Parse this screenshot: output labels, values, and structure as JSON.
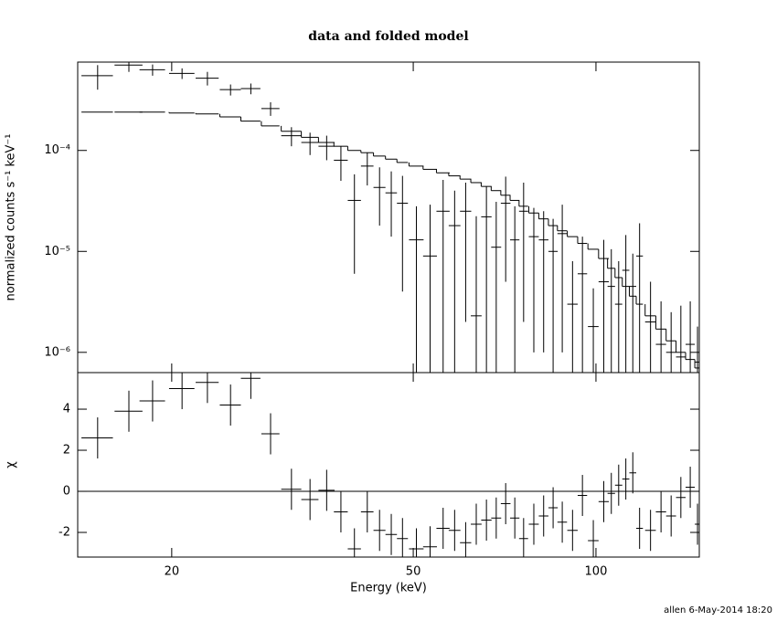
{
  "chart_data": [
    {
      "type": "errorbar",
      "title": "data and folded model",
      "ylabel": "normalized counts s⁻¹ keV⁻¹",
      "log_x": true,
      "log_y": true,
      "xlim": [
        14,
        148
      ],
      "ylim": [
        6.3e-07,
        0.00075
      ],
      "yticks": [
        {
          "value": 0.0001,
          "label": "10⁻⁴"
        },
        {
          "value": 1e-05,
          "label": "10⁻⁵"
        },
        {
          "value": 1e-06,
          "label": "10⁻⁶"
        }
      ],
      "color": "#000000",
      "model_color": "#000000",
      "x": [
        15.1,
        17,
        18.6,
        20.8,
        22.9,
        25,
        27,
        29.1,
        31.5,
        33.8,
        36,
        38,
        40,
        42,
        44,
        46,
        48,
        50.6,
        53.3,
        56,
        58.5,
        61,
        63.5,
        66,
        68.5,
        71,
        73.5,
        76,
        79,
        82,
        85,
        88,
        91.5,
        95,
        99,
        103,
        106,
        109,
        112,
        115,
        118,
        123,
        128,
        133,
        138,
        143,
        147
      ],
      "xerr": [
        0.9,
        0.9,
        0.9,
        1.0,
        1.0,
        1.0,
        1.0,
        1.0,
        1.2,
        1.1,
        1.1,
        1.0,
        1.0,
        1.0,
        1.0,
        1.0,
        1.0,
        1.4,
        1.4,
        1.4,
        1.3,
        1.3,
        1.3,
        1.3,
        1.3,
        1.3,
        1.3,
        1.3,
        1.5,
        1.5,
        1.5,
        1.6,
        1.8,
        1.7,
        2,
        2,
        1.5,
        1.5,
        1.5,
        1.5,
        1.5,
        2.5,
        2.5,
        2.5,
        2.5,
        2.5,
        1.5
      ],
      "values": [
        0.00055,
        0.0007,
        0.00063,
        0.00058,
        0.00052,
        0.0004,
        0.00041,
        0.00026,
        0.00014,
        0.00012,
        0.00011,
        8e-05,
        3.2e-05,
        7e-05,
        4.3e-05,
        3.8e-05,
        3e-05,
        1.3e-05,
        9e-06,
        2.5e-05,
        1.8e-05,
        2.5e-05,
        2.3e-06,
        2.2e-05,
        1.1e-05,
        3e-05,
        1.3e-05,
        2.5e-05,
        1.4e-05,
        1.3e-05,
        1e-05,
        1.5e-05,
        3e-06,
        6e-06,
        1.8e-06,
        5e-06,
        4.5e-06,
        3e-06,
        6.5e-06,
        4.5e-06,
        9e-06,
        2e-06,
        1.2e-06,
        1e-06,
        9e-07,
        1.2e-06,
        8e-07
      ],
      "yerr": [
        0.00015,
        0.0001,
        8e-05,
        7e-05,
        8e-05,
        5e-05,
        5e-05,
        4e-05,
        3e-05,
        3e-05,
        3e-05,
        3e-05,
        2.6e-05,
        2.5e-05,
        2.5e-05,
        2.4e-05,
        2.6e-05,
        1.5e-05,
        2e-05,
        2.6e-05,
        2.2e-05,
        2.3e-05,
        2e-05,
        2.2e-05,
        2e-05,
        2.5e-05,
        1.5e-05,
        2.3e-05,
        1.3e-05,
        1.2e-05,
        1.1e-05,
        1.4e-05,
        5e-06,
        8e-06,
        2.5e-06,
        8e-06,
        6e-06,
        5e-06,
        8e-06,
        5e-06,
        1e-05,
        3e-06,
        2e-06,
        1.5e-06,
        2e-06,
        2e-06,
        1e-06
      ],
      "model": [
        0.00024,
        0.00024,
        0.00024,
        0.000235,
        0.00023,
        0.000215,
        0.000195,
        0.000175,
        0.000155,
        0.000135,
        0.00012,
        0.00011,
        0.0001,
        9.5e-05,
        8.8e-05,
        8.2e-05,
        7.6e-05,
        7e-05,
        6.5e-05,
        6e-05,
        5.6e-05,
        5.2e-05,
        4.8e-05,
        4.4e-05,
        4e-05,
        3.6e-05,
        3.2e-05,
        2.8e-05,
        2.4e-05,
        2.1e-05,
        1.8e-05,
        1.6e-05,
        1.4e-05,
        1.2e-05,
        1.05e-05,
        8.5e-06,
        6.8e-06,
        5.5e-06,
        4.5e-06,
        3.6e-06,
        3e-06,
        2.3e-06,
        1.7e-06,
        1.3e-06,
        1e-06,
        8.5e-07,
        7e-07
      ]
    },
    {
      "type": "residual",
      "ylabel": "χ",
      "xlabel": "Energy (keV)",
      "log_x": true,
      "log_y": false,
      "xlim": [
        14,
        148
      ],
      "ylim": [
        -3.2,
        5.78
      ],
      "xticks": [
        20,
        50,
        100
      ],
      "yticks": [
        -2,
        0,
        2,
        4
      ],
      "color": "#000000",
      "zero_line_color": "#00ff00",
      "x": [
        15.1,
        17,
        18.6,
        20.8,
        22.9,
        25,
        27,
        29.1,
        31.5,
        33.8,
        36,
        38,
        40,
        42,
        44,
        46,
        48,
        50.6,
        53.3,
        56,
        58.5,
        61,
        63.5,
        66,
        68.5,
        71,
        73.5,
        76,
        79,
        82,
        85,
        88,
        91.5,
        95,
        99,
        103,
        106,
        109,
        112,
        115,
        118,
        123,
        128,
        133,
        138,
        143,
        147
      ],
      "xerr": [
        0.9,
        0.9,
        0.9,
        1.0,
        1.0,
        1.0,
        1.0,
        1.0,
        1.2,
        1.1,
        1.1,
        1.0,
        1.0,
        1.0,
        1.0,
        1.0,
        1.0,
        1.4,
        1.4,
        1.4,
        1.3,
        1.3,
        1.3,
        1.3,
        1.3,
        1.3,
        1.3,
        1.3,
        1.5,
        1.5,
        1.5,
        1.6,
        1.8,
        1.7,
        2,
        2,
        1.5,
        1.5,
        1.5,
        1.5,
        1.5,
        2.5,
        2.5,
        2.5,
        2.5,
        2.5,
        1.5
      ],
      "values": [
        2.6,
        3.9,
        4.4,
        5.0,
        5.3,
        4.2,
        5.5,
        2.8,
        0.1,
        -0.4,
        0.05,
        -1.0,
        -2.8,
        -1.0,
        -1.9,
        -2.1,
        -2.3,
        -2.8,
        -2.7,
        -1.8,
        -1.9,
        -2.5,
        -1.6,
        -1.4,
        -1.3,
        -0.6,
        -1.3,
        -2.3,
        -1.6,
        -1.2,
        -0.8,
        -1.5,
        -1.9,
        -0.2,
        -2.4,
        -0.5,
        -0.1,
        0.3,
        0.6,
        0.9,
        -1.8,
        -1.9,
        -1.0,
        -1.2,
        -0.3,
        0.2,
        -1.6
      ],
      "yerr": [
        1,
        1,
        1,
        1,
        1,
        1,
        1,
        1,
        1,
        1,
        1,
        1,
        1,
        1,
        1,
        1,
        1,
        1,
        1,
        1,
        1,
        1,
        1,
        1,
        1,
        1,
        1,
        1,
        1,
        1,
        1,
        1,
        1,
        1,
        1,
        1,
        1,
        1,
        1,
        1,
        1,
        1,
        1,
        1,
        1,
        1,
        1
      ]
    }
  ],
  "footer": "allen  6-May-2014 18:20"
}
